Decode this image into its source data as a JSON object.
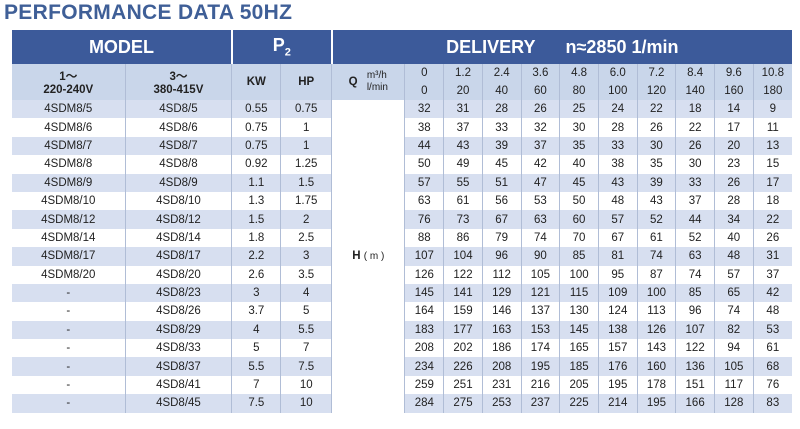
{
  "title": "PERFORMANCE DATA 50HZ",
  "header": {
    "model": "MODEL",
    "p2": "P",
    "p2_sub": "2",
    "delivery": "DELIVERY",
    "speed": "n≈2850 1/min",
    "col_1ph_line1": "1～",
    "col_1ph_line2": "220-240V",
    "col_3ph_line1": "3～",
    "col_3ph_line2": "380-415V",
    "kw": "KW",
    "hp": "HP",
    "q": "Q",
    "unit_m3h": "m³/h",
    "unit_lmin": "l/min",
    "h_label": "H",
    "h_unit": "( m )"
  },
  "flow_m3h": [
    "0",
    "1.2",
    "2.4",
    "3.6",
    "4.8",
    "6.0",
    "7.2",
    "8.4",
    "9.6",
    "10.8"
  ],
  "flow_lmin": [
    "0",
    "20",
    "40",
    "60",
    "80",
    "100",
    "120",
    "140",
    "160",
    "180"
  ],
  "rows": [
    {
      "m1": "4SDM8/5",
      "m3": "4SD8/5",
      "kw": "0.55",
      "hp": "0.75",
      "h": [
        "32",
        "31",
        "28",
        "26",
        "25",
        "24",
        "22",
        "18",
        "14",
        "9"
      ]
    },
    {
      "m1": "4SDM8/6",
      "m3": "4SD8/6",
      "kw": "0.75",
      "hp": "1",
      "h": [
        "38",
        "37",
        "33",
        "32",
        "30",
        "28",
        "26",
        "22",
        "17",
        "11"
      ]
    },
    {
      "m1": "4SDM8/7",
      "m3": "4SD8/7",
      "kw": "0.75",
      "hp": "1",
      "h": [
        "44",
        "43",
        "39",
        "37",
        "35",
        "33",
        "30",
        "26",
        "20",
        "13"
      ]
    },
    {
      "m1": "4SDM8/8",
      "m3": "4SD8/8",
      "kw": "0.92",
      "hp": "1.25",
      "h": [
        "50",
        "49",
        "45",
        "42",
        "40",
        "38",
        "35",
        "30",
        "23",
        "15"
      ]
    },
    {
      "m1": "4SDM8/9",
      "m3": "4SD8/9",
      "kw": "1.1",
      "hp": "1.5",
      "h": [
        "57",
        "55",
        "51",
        "47",
        "45",
        "43",
        "39",
        "33",
        "26",
        "17"
      ]
    },
    {
      "m1": "4SDM8/10",
      "m3": "4SD8/10",
      "kw": "1.3",
      "hp": "1.75",
      "h": [
        "63",
        "61",
        "56",
        "53",
        "50",
        "48",
        "43",
        "37",
        "28",
        "18"
      ]
    },
    {
      "m1": "4SDM8/12",
      "m3": "4SD8/12",
      "kw": "1.5",
      "hp": "2",
      "h": [
        "76",
        "73",
        "67",
        "63",
        "60",
        "57",
        "52",
        "44",
        "34",
        "22"
      ]
    },
    {
      "m1": "4SDM8/14",
      "m3": "4SD8/14",
      "kw": "1.8",
      "hp": "2.5",
      "h": [
        "88",
        "86",
        "79",
        "74",
        "70",
        "67",
        "61",
        "52",
        "40",
        "26"
      ]
    },
    {
      "m1": "4SDM8/17",
      "m3": "4SD8/17",
      "kw": "2.2",
      "hp": "3",
      "h": [
        "107",
        "104",
        "96",
        "90",
        "85",
        "81",
        "74",
        "63",
        "48",
        "31"
      ]
    },
    {
      "m1": "4SDM8/20",
      "m3": "4SD8/20",
      "kw": "2.6",
      "hp": "3.5",
      "h": [
        "126",
        "122",
        "112",
        "105",
        "100",
        "95",
        "87",
        "74",
        "57",
        "37"
      ]
    },
    {
      "m1": "-",
      "m3": "4SD8/23",
      "kw": "3",
      "hp": "4",
      "h": [
        "145",
        "141",
        "129",
        "121",
        "115",
        "109",
        "100",
        "85",
        "65",
        "42"
      ]
    },
    {
      "m1": "-",
      "m3": "4SD8/26",
      "kw": "3.7",
      "hp": "5",
      "h": [
        "164",
        "159",
        "146",
        "137",
        "130",
        "124",
        "113",
        "96",
        "74",
        "48"
      ]
    },
    {
      "m1": "-",
      "m3": "4SD8/29",
      "kw": "4",
      "hp": "5.5",
      "h": [
        "183",
        "177",
        "163",
        "153",
        "145",
        "138",
        "126",
        "107",
        "82",
        "53"
      ]
    },
    {
      "m1": "-",
      "m3": "4SD8/33",
      "kw": "5",
      "hp": "7",
      "h": [
        "208",
        "202",
        "186",
        "174",
        "165",
        "157",
        "143",
        "122",
        "94",
        "61"
      ]
    },
    {
      "m1": "-",
      "m3": "4SD8/37",
      "kw": "5.5",
      "hp": "7.5",
      "h": [
        "234",
        "226",
        "208",
        "195",
        "185",
        "176",
        "160",
        "136",
        "105",
        "68"
      ]
    },
    {
      "m1": "-",
      "m3": "4SD8/41",
      "kw": "7",
      "hp": "10",
      "h": [
        "259",
        "251",
        "231",
        "216",
        "205",
        "195",
        "178",
        "151",
        "117",
        "76"
      ]
    },
    {
      "m1": "-",
      "m3": "4SD8/45",
      "kw": "7.5",
      "hp": "10",
      "h": [
        "284",
        "275",
        "253",
        "237",
        "225",
        "214",
        "195",
        "166",
        "128",
        "83"
      ]
    }
  ]
}
